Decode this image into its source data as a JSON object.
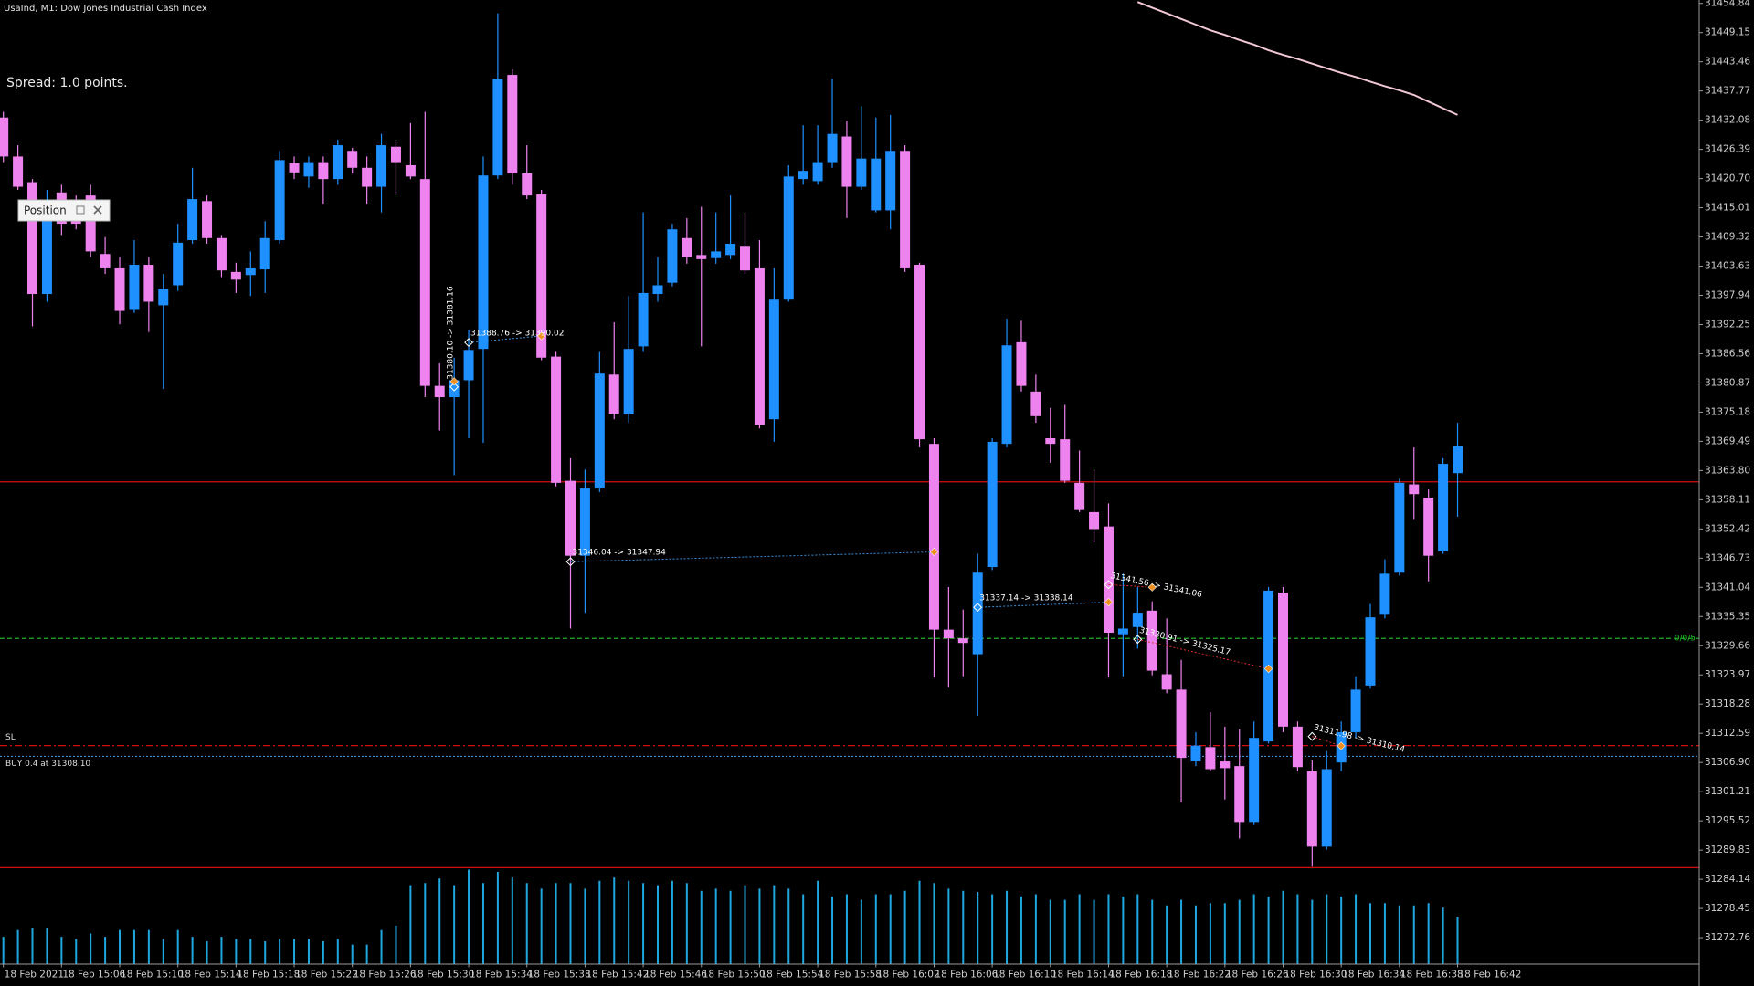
{
  "chart_data": {
    "type": "candlestick",
    "title": "UsaInd, M1:  Dow Jones Industrial Cash Index",
    "info": "Spread: 1.0 points.",
    "panel_label": "Position",
    "categories": [
      "18 Feb 2021",
      null,
      null,
      null,
      "18 Feb 15:06",
      null,
      null,
      null,
      "18 Feb 15:10",
      null,
      null,
      null,
      "18 Feb 15:14",
      null,
      null,
      null,
      "18 Feb 15:18",
      null,
      null,
      null,
      "18 Feb 15:22",
      null,
      null,
      null,
      "18 Feb 15:26",
      null,
      null,
      null,
      "18 Feb 15:30",
      null,
      null,
      null,
      "18 Feb 15:34",
      null,
      null,
      null,
      "18 Feb 15:38",
      null,
      null,
      null,
      "18 Feb 15:42",
      null,
      null,
      null,
      "18 Feb 15:46",
      null,
      null,
      null,
      "18 Feb 15:50",
      null,
      null,
      null,
      "18 Feb 15:54",
      null,
      null,
      null,
      "18 Feb 15:58",
      null,
      null,
      null,
      "18 Feb 16:02",
      null,
      null,
      null,
      "18 Feb 16:06",
      null,
      null,
      null,
      "18 Feb 16:10",
      null,
      null,
      null,
      "18 Feb 16:14",
      null,
      null,
      null,
      "18 Feb 16:18",
      null,
      null,
      null,
      "18 Feb 16:22",
      null,
      null,
      null,
      "18 Feb 16:26",
      null,
      null,
      null,
      "18 Feb 16:30",
      null,
      null,
      null,
      "18 Feb 16:34",
      null,
      null,
      null,
      "18 Feb 16:38",
      null,
      null,
      null,
      "18 Feb 16:42"
    ],
    "open": [
      31432.6,
      31425,
      31420,
      31398.2,
      31418,
      31415.6,
      31417.4,
      31406,
      31403.2,
      31395.1,
      31403.9,
      31396,
      31399.9,
      31408.7,
      31416.3,
      31409.1,
      31402.5,
      31401.9,
      31403,
      31408.7,
      31423.7,
      31421.1,
      31423.9,
      31420.6,
      31426.1,
      31422.8,
      31419.1,
      31426.9,
      31423.3,
      31420.6,
      31380.3,
      31378.1,
      31381.4,
      31387.5,
      31421.3,
      31440.9,
      31421.7,
      31417.6,
      31386,
      31361.8,
      31347.2,
      31360.3,
      31382.5,
      31374.9,
      31388,
      31398.2,
      31400.4,
      31409.1,
      31405.8,
      31405.2,
      31405.8,
      31407.6,
      31403.2,
      31373.8,
      31397.1,
      31420.6,
      31420.2,
      31423.9,
      31428.9,
      31419.1,
      31414.5,
      31414.5,
      31426.1,
      31403.9,
      31369,
      31332.8,
      31331.1,
      31328,
      31345,
      31369,
      31388.8,
      31379.2,
      31370.1,
      31369.9,
      31361.4,
      31355.7,
      31352.9,
      31331.9,
      31333.3,
      31336.5,
      31324.1,
      31321.1,
      31307.1,
      31309.9,
      31307.1,
      31306.2,
      31295.3,
      31311,
      31340,
      31313.9,
      31305.2,
      31290.5,
      31306.9,
      31312.8,
      31321.9,
      31335.7,
      31343.9,
      31361.1,
      31358.5,
      31348.1,
      31363.3
    ],
    "high": [
      31433.7,
      31427.2,
      31420.6,
      31418.5,
      31419.5,
      31417.4,
      31419.5,
      31409.3,
      31405.4,
      31408.7,
      31405.4,
      31402.1,
      31411.9,
      31422.8,
      31417.4,
      31409.7,
      31404.3,
      31406.5,
      31412.4,
      31426.1,
      31425,
      31425,
      31425,
      31428.3,
      31426.7,
      31425,
      31429.4,
      31428.3,
      31431.5,
      31433.7,
      31384.7,
      31385.8,
      31391.2,
      31425,
      31452.9,
      31442,
      31427.2,
      31418.5,
      31386.9,
      31366.2,
      31364,
      31386.9,
      31392.7,
      31397.8,
      31414.1,
      31405.4,
      31411.9,
      31413,
      31415.2,
      31414.1,
      31417.4,
      31414.1,
      31408.7,
      31403.2,
      31423.3,
      31431.1,
      31431.1,
      31440.2,
      31432,
      31434.8,
      31432.6,
      31433.1,
      31427.2,
      31404.3,
      31370.1,
      31341.1,
      31336.7,
      31347.6,
      31370.1,
      31393.4,
      31393,
      31382.5,
      31376,
      31376.6,
      31367.7,
      31364,
      31357.4,
      31343.7,
      31341.1,
      31338.3,
      31335,
      31326.9,
      31312.8,
      31316.7,
      31313.9,
      31313.4,
      31314.9,
      31341.1,
      31341.1,
      31314.9,
      31307.3,
      31309.1,
      31314.9,
      31323.7,
      31337.8,
      31346.5,
      31362.2,
      31368.3,
      31360.1,
      31366.2,
      31373.1
    ],
    "low": [
      31423.9,
      31418.5,
      31391.9,
      31396.7,
      31409.7,
      31410.8,
      31405.4,
      31402.1,
      31392.3,
      31394.5,
      31390.8,
      31379.7,
      31398.8,
      31408,
      31408,
      31401.5,
      31398.4,
      31397.8,
      31398.4,
      31408,
      31420.6,
      31418.9,
      31415.8,
      31419.5,
      31421.7,
      31415.8,
      31414.1,
      31417.4,
      31420.6,
      31378.1,
      31371.6,
      31362.9,
      31370.1,
      31369.2,
      31420.6,
      31419.5,
      31416.7,
      31385.3,
      31360.7,
      31333,
      31336.1,
      31359.6,
      31373.8,
      31373.1,
      31386.9,
      31396.7,
      31399.7,
      31404.1,
      31388,
      31404.1,
      31405,
      31402.1,
      31372,
      31369.4,
      31396.7,
      31419.5,
      31419.5,
      31422.8,
      31413,
      31418.5,
      31414.1,
      31410.8,
      31402.5,
      31368.3,
      31323.5,
      31321.5,
      31323.7,
      31316,
      31344.4,
      31368.3,
      31379.2,
      31373.1,
      31365.3,
      31361.4,
      31355.7,
      31349.8,
      31323.5,
      31323.7,
      31329.1,
      31323.9,
      31320.4,
      31299.1,
      31306.2,
      31305.2,
      31299.7,
      31292.1,
      31294.7,
      31310.6,
      31312.8,
      31305.2,
      31286.6,
      31289.9,
      31305.2,
      31311.7,
      31321.3,
      31335,
      31343.3,
      31354.2,
      31342.2,
      31347.6,
      31354.8
    ],
    "close": [
      31425,
      31419.1,
      31398.2,
      31416.3,
      31411.9,
      31411.9,
      31406.5,
      31403.2,
      31394.9,
      31403.9,
      31396.7,
      31399.1,
      31408.2,
      31416.7,
      31409.1,
      31402.8,
      31401,
      31403.2,
      31409.1,
      31424.3,
      31421.9,
      31423.9,
      31420.6,
      31427.2,
      31422.8,
      31419.1,
      31427.2,
      31423.9,
      31421.1,
      31380.3,
      31378.1,
      31381.4,
      31387.3,
      31421.3,
      31440.2,
      31421.7,
      31417.4,
      31385.8,
      31361.4,
      31347.2,
      31360.3,
      31382.7,
      31374.9,
      31387.5,
      31398.4,
      31399.9,
      31410.8,
      31405.4,
      31405,
      31406.5,
      31408,
      31402.8,
      31372.7,
      31397.1,
      31421.1,
      31422.2,
      31423.9,
      31429.4,
      31419.1,
      31424.6,
      31424.6,
      31426.1,
      31403.2,
      31369.9,
      31332.8,
      31331.1,
      31330.2,
      31343.9,
      31369.4,
      31388.2,
      31380.3,
      31374.4,
      31369,
      31361.8,
      31356.1,
      31352.4,
      31332.2,
      31333,
      31336.1,
      31324.8,
      31321.1,
      31307.8,
      31310.2,
      31305.6,
      31305.8,
      31295.3,
      31311.7,
      31340.4,
      31313.9,
      31306,
      31290.5,
      31305.6,
      31312.8,
      31321.1,
      31335.2,
      31343.7,
      31361.4,
      31359.2,
      31347.2,
      31365.1,
      31368.6
    ],
    "up_color": "#1e90ff",
    "down_color": "#ee82ee",
    "volume": {
      "color": "#1fa8e0",
      "values": [
        24,
        30,
        32,
        32,
        24,
        22,
        27,
        24,
        30,
        30,
        30,
        22,
        30,
        24,
        20,
        24,
        22,
        22,
        20,
        22,
        22,
        22,
        20,
        22,
        17,
        17,
        30,
        34,
        70,
        72,
        76,
        70,
        84,
        72,
        82,
        77,
        72,
        67,
        72,
        72,
        67,
        74,
        77,
        74,
        72,
        70,
        74,
        72,
        65,
        67,
        65,
        70,
        67,
        70,
        67,
        62,
        74,
        60,
        62,
        57,
        62,
        62,
        65,
        74,
        72,
        67,
        65,
        64,
        62,
        65,
        60,
        62,
        57,
        57,
        62,
        57,
        62,
        60,
        62,
        57,
        52,
        57,
        52,
        54,
        54,
        57,
        62,
        60,
        65,
        62,
        57,
        62,
        60,
        62,
        54,
        54,
        52,
        52,
        54,
        50,
        42
      ]
    },
    "ma": {
      "color": "#f2c8d8",
      "values": [
        null,
        null,
        null,
        null,
        null,
        null,
        null,
        null,
        null,
        null,
        null,
        null,
        null,
        null,
        null,
        null,
        null,
        null,
        null,
        null,
        null,
        null,
        null,
        null,
        null,
        null,
        null,
        null,
        null,
        null,
        null,
        null,
        null,
        null,
        null,
        null,
        null,
        null,
        null,
        null,
        null,
        null,
        null,
        null,
        null,
        null,
        null,
        null,
        null,
        null,
        null,
        null,
        null,
        null,
        null,
        null,
        null,
        null,
        null,
        null,
        null,
        null,
        null,
        null,
        null,
        null,
        null,
        null,
        null,
        null,
        null,
        null,
        null,
        null,
        null,
        null,
        null,
        null,
        31455.1,
        31454,
        31452.9,
        31451.8,
        31450.7,
        31449.6,
        31448.7,
        31447.7,
        31446.8,
        31445.7,
        31444.8,
        31444,
        31443.1,
        31442.2,
        31441.3,
        31440.5,
        31439.6,
        31438.7,
        31437.9,
        31437,
        31435.7,
        31434.4,
        31433.1
      ]
    },
    "ylim": [
      31267.7,
      31455.5
    ],
    "yticks": [
      31454.84,
      31449.15,
      31443.46,
      31437.77,
      31432.08,
      31426.39,
      {
        "value": 31420.7,
        "label": "31420.70"
      },
      31415.01,
      31409.32,
      31403.63,
      31397.94,
      31392.25,
      31386.56,
      31380.87,
      31375.18,
      31369.49,
      {
        "value": 31363.8,
        "label": "31363.80"
      },
      31358.11,
      31352.42,
      31346.73,
      31341.04,
      31335.35,
      31329.66,
      31323.97,
      31318.28,
      31312.59,
      {
        "value": 31306.9,
        "label": "31306.90"
      },
      31301.21,
      31295.52,
      31289.83,
      31284.14,
      31278.45,
      31272.76
    ],
    "lines": [
      {
        "price": 31361.6,
        "color": "#d01010",
        "style": "solid"
      },
      {
        "price": 31286.4,
        "color": "#d01010",
        "style": "solid"
      },
      {
        "price": 31331.1,
        "color": "#22c02a",
        "style": "dashed",
        "label": "0/0/5"
      },
      {
        "price": 31310.2,
        "color": "#d01010",
        "style": "dashdot",
        "label": "SL"
      },
      {
        "price": 31308.1,
        "color": "#3a8fd8",
        "style": "dotted",
        "label": "BUY 0.4 at 31308.10"
      }
    ],
    "trades": [
      {
        "label": "31388.76 -> 31390.02",
        "open": 31388.76,
        "close": 31390.02
      },
      {
        "label": "31346.04 -> 31347.94",
        "open": 31346.04,
        "close": 31347.94
      },
      {
        "label": "31337.14 -> 31338.14",
        "open": 31337.14,
        "close": 31338.14
      },
      {
        "label": "31380.10 -> 31381.16",
        "open": 31380.1,
        "close": 31381.16
      },
      {
        "label": "31341.56 -> 31341.06",
        "open": 31341.56,
        "close": 31341.06
      },
      {
        "label": "31330.91 -> 31325.17",
        "open": 31330.91,
        "close": 31325.17
      },
      {
        "label": "31311.98 -> 31310.14",
        "open": 31311.98,
        "close": 31310.14
      }
    ]
  }
}
